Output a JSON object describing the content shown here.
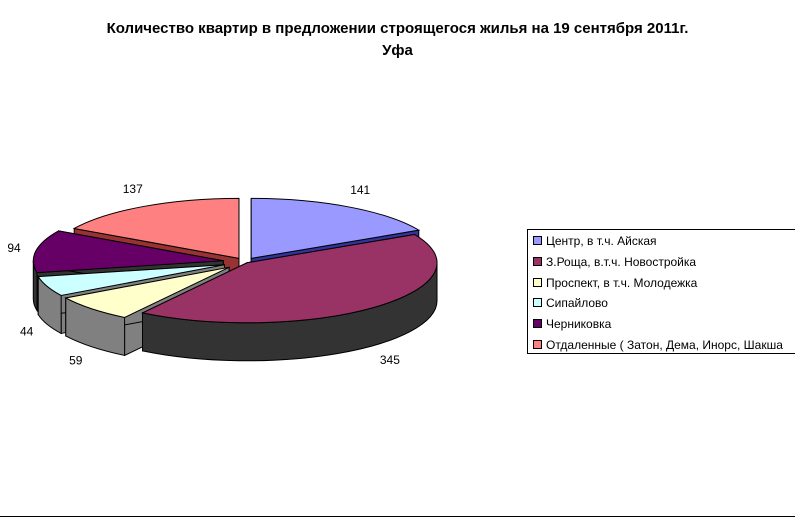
{
  "chart_data": {
    "type": "pie",
    "title": "Количество квартир в предложении строящегося жилья на 19 сентября 2011г.",
    "subtitle": "Уфа",
    "categories": [
      "Центр, в т.ч. Айская",
      "З.Роща, в.т.ч. Новостройка",
      "Проспект, в т.ч. Молодежка",
      "Сипайлово",
      "Черниковка",
      "Отдаленные ( Затон, Дема, Инорс, Шакша"
    ],
    "values": [
      141,
      345,
      59,
      44,
      94,
      137
    ],
    "data_labels": [
      "141",
      "345",
      "59",
      "44",
      "94",
      "137"
    ],
    "colors": {
      "top": [
        "#9999ff",
        "#993366",
        "#ffffcc",
        "#ccffff",
        "#660066",
        "#ff8080"
      ],
      "side": [
        "#333399",
        "#333333",
        "#808080",
        "#808080",
        "#333333",
        "#993333"
      ]
    },
    "style": "3d-exploded",
    "legend_position": "right"
  }
}
